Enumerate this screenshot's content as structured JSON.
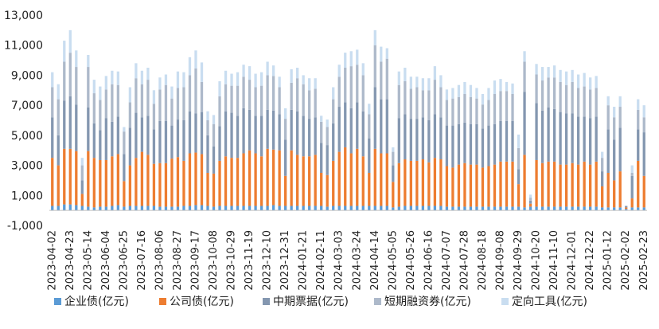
{
  "chart_data": {
    "type": "bar",
    "stacked": true,
    "title": "",
    "xlabel": "",
    "ylabel": "",
    "ylim": [
      -1000,
      13000
    ],
    "yticks": [
      -1000,
      1000,
      3000,
      5000,
      7000,
      9000,
      11000,
      13000
    ],
    "ytick_labels": [
      "-1,000",
      "1,000",
      "3,000",
      "5,000",
      "7,000",
      "9,000",
      "11,000",
      "13,000"
    ],
    "grid": false,
    "legend_position": "bottom",
    "categories": [
      "2023-04-02",
      "2023-04-09",
      "2023-04-16",
      "2023-04-23",
      "2023-04-30",
      "2023-05-07",
      "2023-05-14",
      "2023-05-21",
      "2023-05-28",
      "2023-06-04",
      "2023-06-11",
      "2023-06-18",
      "2023-06-25",
      "2023-07-02",
      "2023-07-09",
      "2023-07-16",
      "2023-07-23",
      "2023-07-30",
      "2023-08-06",
      "2023-08-13",
      "2023-08-20",
      "2023-08-27",
      "2023-09-03",
      "2023-09-10",
      "2023-09-17",
      "2023-09-24",
      "2023-10-01",
      "2023-10-08",
      "2023-10-15",
      "2023-10-22",
      "2023-10-29",
      "2023-11-05",
      "2023-11-12",
      "2023-11-19",
      "2023-11-26",
      "2023-12-03",
      "2023-12-10",
      "2023-12-17",
      "2023-12-24",
      "2023-12-31",
      "2024-01-07",
      "2024-01-14",
      "2024-01-21",
      "2024-01-28",
      "2024-02-04",
      "2024-02-11",
      "2024-02-18",
      "2024-02-25",
      "2024-03-03",
      "2024-03-10",
      "2024-03-17",
      "2024-03-24",
      "2024-03-31",
      "2024-04-07",
      "2024-04-14",
      "2024-04-21",
      "2024-04-28",
      "2024-05-05",
      "2024-05-12",
      "2024-05-19",
      "2024-05-26",
      "2024-06-02",
      "2024-06-09",
      "2024-06-16",
      "2024-06-23",
      "2024-06-30",
      "2024-07-07",
      "2024-07-14",
      "2024-07-21",
      "2024-07-28",
      "2024-08-04",
      "2024-08-11",
      "2024-08-18",
      "2024-08-25",
      "2024-09-01",
      "2024-09-08",
      "2024-09-15",
      "2024-09-22",
      "2024-09-29",
      "2024-10-06",
      "2024-10-13",
      "2024-10-20",
      "2024-10-27",
      "2024-11-03",
      "2024-11-10",
      "2024-11-17",
      "2024-11-24",
      "2024-12-01",
      "2024-12-08",
      "2024-12-15",
      "2024-12-22",
      "2024-12-29",
      "2025-01-05",
      "2025-01-12",
      "2025-01-19",
      "2025-01-26",
      "2025-02-02",
      "2025-02-09",
      "2025-02-16",
      "2025-02-23"
    ],
    "label_step": 3,
    "series": [
      {
        "name": "企业债(亿元)",
        "color": "#5b9bd5",
        "values": [
          300,
          300,
          400,
          400,
          350,
          300,
          250,
          200,
          250,
          250,
          300,
          350,
          250,
          300,
          300,
          300,
          300,
          300,
          250,
          250,
          250,
          250,
          300,
          300,
          350,
          350,
          300,
          250,
          300,
          300,
          300,
          300,
          300,
          300,
          300,
          300,
          300,
          350,
          300,
          300,
          300,
          300,
          300,
          300,
          300,
          300,
          250,
          300,
          300,
          300,
          300,
          300,
          300,
          300,
          300,
          300,
          300,
          200,
          250,
          300,
          300,
          300,
          300,
          300,
          300,
          300,
          250,
          250,
          250,
          250,
          250,
          250,
          250,
          250,
          250,
          250,
          250,
          250,
          250,
          200,
          250,
          250,
          250,
          250,
          250,
          250,
          250,
          250,
          250,
          250,
          250,
          250,
          200,
          200,
          200,
          200,
          100,
          200,
          200,
          200
        ]
      },
      {
        "name": "公司债(亿元)",
        "color": "#ed7d31",
        "values": [
          3200,
          2700,
          3700,
          3700,
          3600,
          800,
          3700,
          3300,
          3100,
          3100,
          3300,
          3400,
          1700,
          2700,
          3200,
          3600,
          3400,
          2800,
          2900,
          2900,
          3200,
          3300,
          3000,
          3500,
          3500,
          3400,
          2200,
          2200,
          3000,
          3300,
          3200,
          3200,
          3500,
          3700,
          3500,
          3300,
          3800,
          3700,
          3700,
          2000,
          3700,
          3400,
          3300,
          3300,
          3400,
          2200,
          2100,
          3000,
          3600,
          3900,
          3500,
          3800,
          3300,
          2200,
          3800,
          3500,
          3500,
          1700,
          2900,
          3100,
          3000,
          3000,
          3100,
          2900,
          3200,
          3100,
          2700,
          2600,
          2800,
          2900,
          2800,
          2800,
          2600,
          2700,
          2800,
          3000,
          3000,
          3000,
          1500,
          3500,
          200,
          3100,
          2900,
          3000,
          3000,
          2800,
          2800,
          2900,
          2800,
          3000,
          2800,
          3000,
          1400,
          2300,
          1800,
          2400,
          100,
          600,
          3100,
          2100
        ]
      },
      {
        "name": "中期票据(亿元)",
        "color": "#8497b0",
        "values": [
          2700,
          2000,
          3200,
          3500,
          3100,
          900,
          2900,
          2300,
          2000,
          2800,
          2300,
          2500,
          1800,
          2500,
          3000,
          2300,
          2600,
          2300,
          2800,
          2800,
          2200,
          2500,
          2700,
          2800,
          2600,
          2800,
          2500,
          1800,
          2300,
          3000,
          3000,
          2800,
          3000,
          2700,
          2500,
          2700,
          2600,
          2600,
          2400,
          2400,
          2700,
          2900,
          2700,
          2500,
          2500,
          2000,
          2000,
          2500,
          3000,
          3000,
          3000,
          3100,
          3000,
          2300,
          4100,
          3600,
          3600,
          1100,
          3000,
          3000,
          2800,
          2800,
          2800,
          2800,
          2900,
          2800,
          2700,
          2800,
          2700,
          2700,
          2700,
          2700,
          2600,
          2700,
          2700,
          2700,
          2700,
          2700,
          1000,
          4200,
          200,
          3800,
          3500,
          3600,
          3500,
          3500,
          3400,
          3300,
          3200,
          3000,
          3100,
          3000,
          1000,
          2900,
          2700,
          2900,
          100,
          1500,
          2100,
          2900
        ]
      },
      {
        "name": "短期融资券(亿元)",
        "color": "#adb9ca",
        "values": [
          2000,
          2400,
          2600,
          2900,
          2500,
          1000,
          2700,
          2000,
          2000,
          1900,
          2500,
          2100,
          1500,
          1700,
          2300,
          2200,
          2400,
          1700,
          2100,
          2400,
          1800,
          2100,
          2200,
          2400,
          3000,
          2000,
          1000,
          1500,
          2000,
          1800,
          1800,
          2000,
          2100,
          2000,
          1900,
          2000,
          2300,
          2300,
          1800,
          1400,
          1800,
          2200,
          2100,
          1900,
          1900,
          1400,
          1200,
          1600,
          2000,
          2300,
          2800,
          2500,
          2400,
          1600,
          2800,
          2500,
          2700,
          900,
          2200,
          2200,
          2000,
          2100,
          1800,
          2000,
          2300,
          2000,
          1700,
          1800,
          1800,
          1900,
          1800,
          1700,
          1600,
          1700,
          2000,
          2000,
          2000,
          1800,
          1400,
          2000,
          200,
          1900,
          2000,
          2000,
          2100,
          2000,
          1900,
          2100,
          1900,
          2000,
          1900,
          1900,
          900,
          1600,
          1500,
          1400,
          0,
          200,
          1300,
          1000
        ]
      },
      {
        "name": "定向工具(亿元)",
        "color": "#c9ddf0",
        "values": [
          1000,
          1000,
          1400,
          1500,
          1100,
          500,
          800,
          900,
          900,
          900,
          900,
          900,
          300,
          1000,
          1000,
          900,
          800,
          900,
          800,
          700,
          800,
          1100,
          1000,
          1200,
          1200,
          1300,
          600,
          600,
          1000,
          900,
          800,
          900,
          800,
          900,
          900,
          900,
          900,
          700,
          700,
          700,
          900,
          700,
          600,
          800,
          700,
          400,
          500,
          800,
          800,
          1000,
          1000,
          1000,
          800,
          700,
          1000,
          1000,
          700,
          300,
          900,
          900,
          800,
          700,
          800,
          800,
          900,
          800,
          700,
          700,
          800,
          800,
          800,
          700,
          700,
          800,
          900,
          800,
          600,
          700,
          900,
          700,
          200,
          700,
          900,
          700,
          800,
          800,
          900,
          800,
          900,
          900,
          800,
          800,
          400,
          600,
          700,
          700,
          0,
          500,
          700,
          800
        ]
      }
    ]
  }
}
